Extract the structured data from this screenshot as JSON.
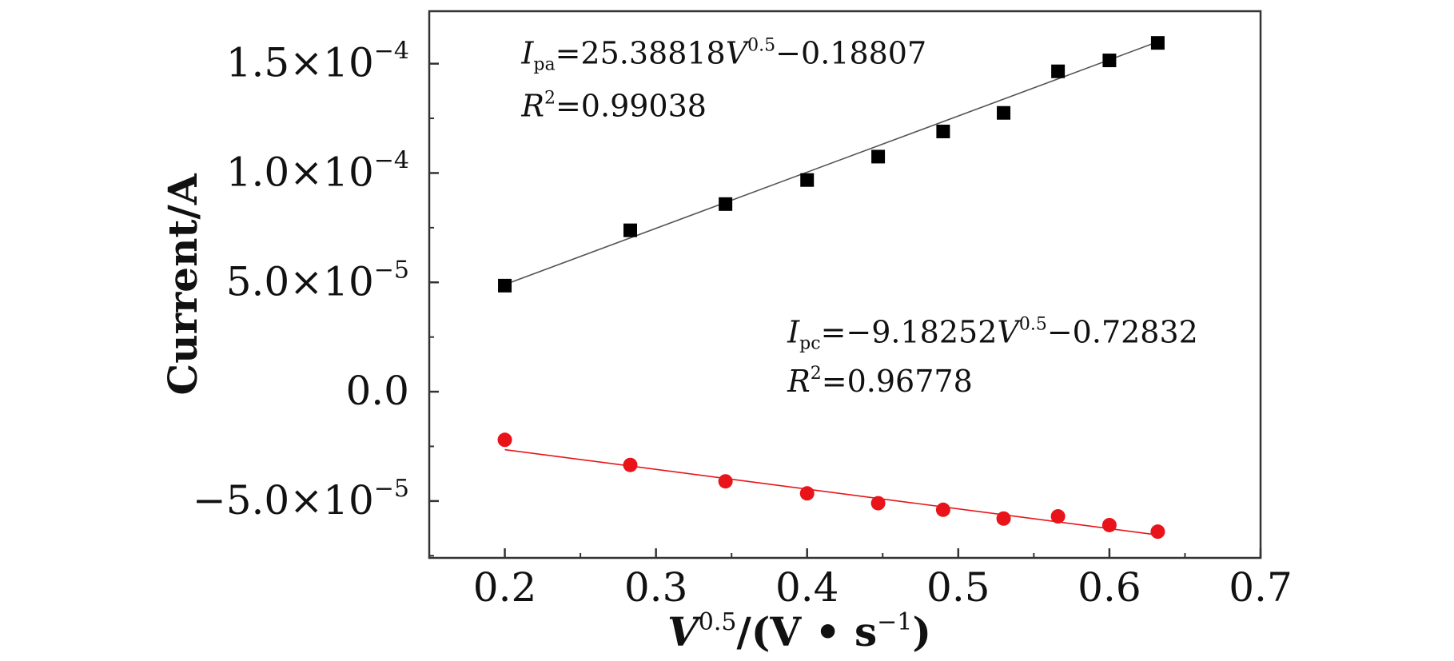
{
  "chart_data": {
    "type": "scatter",
    "xlabel_main": "V",
    "xlabel_sup": "0.5",
    "xlabel_rest": "/(V • s",
    "xlabel_sup2": "−1",
    "xlabel_close": ")",
    "ylabel": "Current/A",
    "xlim": [
      0.15,
      0.7
    ],
    "ylim": [
      -7.6e-05,
      0.000174
    ],
    "x_ticks": [
      {
        "v": 0.2,
        "label": "0.2"
      },
      {
        "v": 0.3,
        "label": "0.3"
      },
      {
        "v": 0.4,
        "label": "0.4"
      },
      {
        "v": 0.5,
        "label": "0.5"
      },
      {
        "v": 0.6,
        "label": "0.6"
      },
      {
        "v": 0.7,
        "label": "0.7"
      }
    ],
    "y_ticks": [
      {
        "v": 0.00015,
        "mant": "1.5×10",
        "exp": "−4"
      },
      {
        "v": 0.0001,
        "mant": "1.0×10",
        "exp": "−4"
      },
      {
        "v": 5e-05,
        "mant": "5.0×10",
        "exp": "−5"
      },
      {
        "v": 0,
        "mant": "0.0",
        "exp": ""
      },
      {
        "v": -5e-05,
        "mant": "−5.0×10",
        "exp": "−5"
      }
    ],
    "series": [
      {
        "marker": "square",
        "color": "#000000",
        "line_color": "#555555",
        "points": [
          [
            0.2,
            4.85e-05
          ],
          [
            0.283,
            7.38e-05
          ],
          [
            0.346,
            8.58e-05
          ],
          [
            0.4,
            9.68e-05
          ],
          [
            0.447,
            0.0001075
          ],
          [
            0.49,
            0.000119
          ],
          [
            0.53,
            0.0001275
          ],
          [
            0.566,
            0.0001465
          ],
          [
            0.6,
            0.0001515
          ],
          [
            0.632,
            0.0001595
          ]
        ],
        "fit": [
          [
            0.2,
            4.9e-05
          ],
          [
            0.632,
            0.00016
          ]
        ]
      },
      {
        "marker": "circle",
        "color": "#e8141a",
        "line_color": "#e8141a",
        "points": [
          [
            0.2,
            -2.2e-05
          ],
          [
            0.283,
            -3.35e-05
          ],
          [
            0.346,
            -4.1e-05
          ],
          [
            0.4,
            -4.65e-05
          ],
          [
            0.447,
            -5.1e-05
          ],
          [
            0.49,
            -5.4e-05
          ],
          [
            0.53,
            -5.8e-05
          ],
          [
            0.566,
            -5.7e-05
          ],
          [
            0.6,
            -6.1e-05
          ],
          [
            0.632,
            -6.4e-05
          ]
        ],
        "fit": [
          [
            0.2,
            -2.65e-05
          ],
          [
            0.632,
            -6.55e-05
          ]
        ]
      }
    ],
    "annotations": [
      {
        "x": 0.211,
        "y": 0.00015,
        "I": "I",
        "sub": "pa",
        "eq": "=25.38818",
        "V": "V",
        "sup": "0.5",
        "tail": "−0.18807"
      },
      {
        "x": 0.211,
        "y": 0.000126,
        "R": "R",
        "sup": "2",
        "eq": "=0.99038"
      },
      {
        "x": 0.387,
        "y": 2.25e-05,
        "I": "I",
        "sub": "pc",
        "eq": "=−9.18252",
        "V": "V",
        "sup": "0.5",
        "tail": "−0.72832"
      },
      {
        "x": 0.387,
        "y": 0.0,
        "R": "R",
        "sup": "2",
        "eq": "=0.96778"
      }
    ]
  }
}
